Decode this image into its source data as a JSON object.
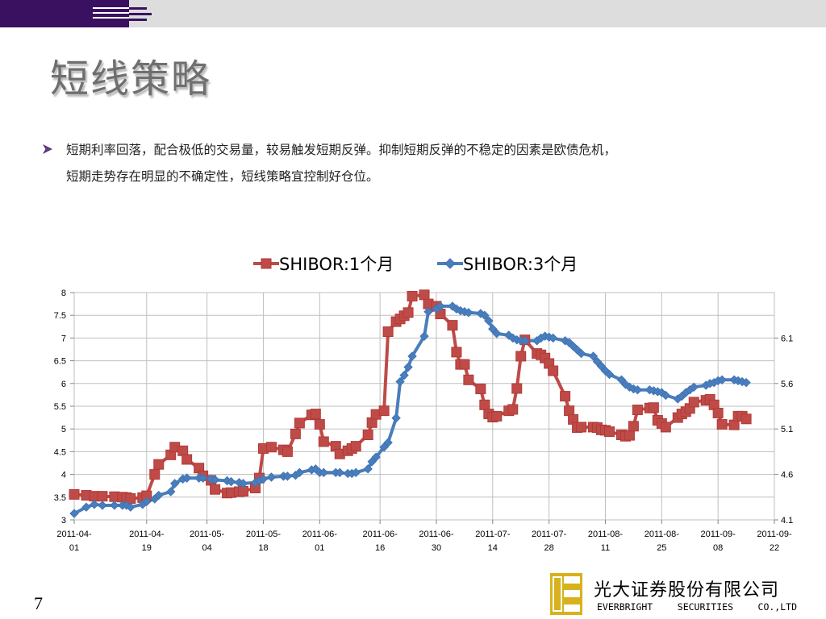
{
  "slide": {
    "title": "短线策略",
    "paragraph_lines": [
      "短期利率回落，配合极低的交易量，较易触发短期反弹。抑制短期反弹的不稳定的因素是欧债危机，",
      "短期走势存在明显的不确定性，短线策略宜控制好仓位。"
    ],
    "page_number": "7",
    "company_cn": "光大证券股份有限公司",
    "company_en_words": [
      "EVERBRIGHT",
      "SECURITIES",
      "CO.,LTD"
    ]
  },
  "colors": {
    "top_bar": "#dddddd",
    "top_bar_accent": "#3a1160",
    "title": "#6f6f6f",
    "bullet": "#6a3b8f",
    "series_1": "#be4b48",
    "series_1_marker": "#b23a37",
    "series_2": "#4a7ebb",
    "series_2_marker": "#3f74b8",
    "logo_gold": "#d7b21c"
  },
  "chart_data": {
    "type": "line",
    "legend_position": "top",
    "grid": true,
    "x_tick_labels": [
      [
        "2011-04-",
        "01"
      ],
      [
        "2011-04-",
        "19"
      ],
      [
        "2011-05-",
        "04"
      ],
      [
        "2011-05-",
        "18"
      ],
      [
        "2011-06-",
        "01"
      ],
      [
        "2011-06-",
        "16"
      ],
      [
        "2011-06-",
        "30"
      ],
      [
        "2011-07-",
        "14"
      ],
      [
        "2011-07-",
        "28"
      ],
      [
        "2011-08-",
        "11"
      ],
      [
        "2011-08-",
        "25"
      ],
      [
        "2011-09-",
        "08"
      ],
      [
        "2011-09-",
        "22"
      ]
    ],
    "x_tick_dates": [
      "2011-04-01",
      "2011-04-19",
      "2011-05-04",
      "2011-05-18",
      "2011-06-01",
      "2011-06-16",
      "2011-06-30",
      "2011-07-14",
      "2011-07-28",
      "2011-08-11",
      "2011-08-25",
      "2011-09-08",
      "2011-09-22"
    ],
    "y_left": {
      "range": [
        3,
        8
      ],
      "ticks": [
        "3",
        "3.5",
        "4",
        "4.5",
        "5",
        "5.5",
        "6",
        "6.5",
        "7",
        "7.5",
        "8"
      ]
    },
    "y_right": {
      "range": [
        4.1,
        6.6
      ],
      "ticks": [
        "4.1",
        "4.6",
        "5.1",
        "5.6",
        "6.1"
      ]
    },
    "series": [
      {
        "name": "SHIBOR:1个月",
        "axis": "left",
        "marker": "square",
        "points": [
          [
            "2011-04-01",
            3.56
          ],
          [
            "2011-04-04",
            3.54
          ],
          [
            "2011-04-06",
            3.52
          ],
          [
            "2011-04-08",
            3.52
          ],
          [
            "2011-04-11",
            3.51
          ],
          [
            "2011-04-13",
            3.5
          ],
          [
            "2011-04-14",
            3.49
          ],
          [
            "2011-04-15",
            3.47
          ],
          [
            "2011-04-18",
            3.49
          ],
          [
            "2011-04-19",
            3.53
          ],
          [
            "2011-04-21",
            4.0
          ],
          [
            "2011-04-22",
            4.22
          ],
          [
            "2011-04-25",
            4.43
          ],
          [
            "2011-04-26",
            4.6
          ],
          [
            "2011-04-28",
            4.52
          ],
          [
            "2011-04-29",
            4.33
          ],
          [
            "2011-05-02",
            4.14
          ],
          [
            "2011-05-03",
            3.97
          ],
          [
            "2011-05-05",
            3.87
          ],
          [
            "2011-05-06",
            3.67
          ],
          [
            "2011-05-09",
            3.59
          ],
          [
            "2011-05-10",
            3.6
          ],
          [
            "2011-05-12",
            3.62
          ],
          [
            "2011-05-13",
            3.63
          ],
          [
            "2011-05-16",
            3.7
          ],
          [
            "2011-05-17",
            3.92
          ],
          [
            "2011-05-18",
            4.57
          ],
          [
            "2011-05-20",
            4.6
          ],
          [
            "2011-05-23",
            4.54
          ],
          [
            "2011-05-24",
            4.5
          ],
          [
            "2011-05-26",
            4.89
          ],
          [
            "2011-05-27",
            5.13
          ],
          [
            "2011-05-30",
            5.31
          ],
          [
            "2011-05-31",
            5.33
          ],
          [
            "2011-06-01",
            5.1
          ],
          [
            "2011-06-02",
            4.72
          ],
          [
            "2011-06-05",
            4.62
          ],
          [
            "2011-06-06",
            4.45
          ],
          [
            "2011-06-08",
            4.52
          ],
          [
            "2011-06-09",
            4.57
          ],
          [
            "2011-06-10",
            4.62
          ],
          [
            "2011-06-13",
            4.87
          ],
          [
            "2011-06-14",
            5.14
          ],
          [
            "2011-06-15",
            5.32
          ],
          [
            "2011-06-17",
            5.4
          ],
          [
            "2011-06-18",
            7.14
          ],
          [
            "2011-06-20",
            7.36
          ],
          [
            "2011-06-21",
            7.42
          ],
          [
            "2011-06-22",
            7.49
          ],
          [
            "2011-06-23",
            7.56
          ],
          [
            "2011-06-24",
            7.92
          ],
          [
            "2011-06-27",
            7.95
          ],
          [
            "2011-06-28",
            7.75
          ],
          [
            "2011-06-30",
            7.7
          ],
          [
            "2011-07-01",
            7.53
          ],
          [
            "2011-07-04",
            7.28
          ],
          [
            "2011-07-05",
            6.69
          ],
          [
            "2011-07-06",
            6.42
          ],
          [
            "2011-07-07",
            6.42
          ],
          [
            "2011-07-08",
            6.08
          ],
          [
            "2011-07-11",
            5.88
          ],
          [
            "2011-07-12",
            5.53
          ],
          [
            "2011-07-13",
            5.33
          ],
          [
            "2011-07-14",
            5.26
          ],
          [
            "2011-07-15",
            5.28
          ],
          [
            "2011-07-18",
            5.4
          ],
          [
            "2011-07-19",
            5.43
          ],
          [
            "2011-07-20",
            5.89
          ],
          [
            "2011-07-21",
            6.6
          ],
          [
            "2011-07-22",
            6.96
          ],
          [
            "2011-07-25",
            6.66
          ],
          [
            "2011-07-26",
            6.63
          ],
          [
            "2011-07-27",
            6.56
          ],
          [
            "2011-07-28",
            6.44
          ],
          [
            "2011-07-29",
            6.28
          ],
          [
            "2011-08-01",
            5.72
          ],
          [
            "2011-08-02",
            5.4
          ],
          [
            "2011-08-03",
            5.21
          ],
          [
            "2011-08-04",
            5.03
          ],
          [
            "2011-08-05",
            5.04
          ],
          [
            "2011-08-08",
            5.04
          ],
          [
            "2011-08-09",
            5.03
          ],
          [
            "2011-08-10",
            4.98
          ],
          [
            "2011-08-11",
            4.97
          ],
          [
            "2011-08-12",
            4.94
          ],
          [
            "2011-08-15",
            4.87
          ],
          [
            "2011-08-16",
            4.84
          ],
          [
            "2011-08-17",
            4.86
          ],
          [
            "2011-08-18",
            5.06
          ],
          [
            "2011-08-19",
            5.42
          ],
          [
            "2011-08-22",
            5.46
          ],
          [
            "2011-08-23",
            5.47
          ],
          [
            "2011-08-24",
            5.19
          ],
          [
            "2011-08-25",
            5.12
          ],
          [
            "2011-08-26",
            5.04
          ],
          [
            "2011-08-29",
            5.25
          ],
          [
            "2011-08-30",
            5.33
          ],
          [
            "2011-08-31",
            5.38
          ],
          [
            "2011-09-01",
            5.45
          ],
          [
            "2011-09-02",
            5.59
          ],
          [
            "2011-09-05",
            5.63
          ],
          [
            "2011-09-06",
            5.65
          ],
          [
            "2011-09-07",
            5.53
          ],
          [
            "2011-09-08",
            5.35
          ],
          [
            "2011-09-09",
            5.1
          ],
          [
            "2011-09-12",
            5.09
          ],
          [
            "2011-09-13",
            5.28
          ],
          [
            "2011-09-14",
            5.28
          ],
          [
            "2011-09-15",
            5.22
          ]
        ]
      },
      {
        "name": "SHIBOR:3个月",
        "axis": "right",
        "marker": "diamond",
        "points": [
          [
            "2011-04-01",
            4.17
          ],
          [
            "2011-04-04",
            4.24
          ],
          [
            "2011-04-06",
            4.27
          ],
          [
            "2011-04-08",
            4.26
          ],
          [
            "2011-04-11",
            4.26
          ],
          [
            "2011-04-13",
            4.26
          ],
          [
            "2011-04-14",
            4.26
          ],
          [
            "2011-04-15",
            4.24
          ],
          [
            "2011-04-18",
            4.27
          ],
          [
            "2011-04-19",
            4.3
          ],
          [
            "2011-04-21",
            4.33
          ],
          [
            "2011-04-22",
            4.37
          ],
          [
            "2011-04-25",
            4.41
          ],
          [
            "2011-04-26",
            4.5
          ],
          [
            "2011-04-28",
            4.55
          ],
          [
            "2011-04-29",
            4.56
          ],
          [
            "2011-05-02",
            4.56
          ],
          [
            "2011-05-03",
            4.56
          ],
          [
            "2011-05-05",
            4.55
          ],
          [
            "2011-05-06",
            4.54
          ],
          [
            "2011-05-09",
            4.53
          ],
          [
            "2011-05-10",
            4.52
          ],
          [
            "2011-05-12",
            4.51
          ],
          [
            "2011-05-13",
            4.5
          ],
          [
            "2011-05-16",
            4.51
          ],
          [
            "2011-05-17",
            4.53
          ],
          [
            "2011-05-18",
            4.55
          ],
          [
            "2011-05-20",
            4.57
          ],
          [
            "2011-05-23",
            4.58
          ],
          [
            "2011-05-24",
            4.58
          ],
          [
            "2011-05-26",
            4.59
          ],
          [
            "2011-05-27",
            4.62
          ],
          [
            "2011-05-30",
            4.65
          ],
          [
            "2011-05-31",
            4.66
          ],
          [
            "2011-06-01",
            4.62
          ],
          [
            "2011-06-02",
            4.62
          ],
          [
            "2011-06-05",
            4.62
          ],
          [
            "2011-06-06",
            4.62
          ],
          [
            "2011-06-08",
            4.61
          ],
          [
            "2011-06-09",
            4.61
          ],
          [
            "2011-06-10",
            4.62
          ],
          [
            "2011-06-13",
            4.66
          ],
          [
            "2011-06-14",
            4.74
          ],
          [
            "2011-06-15",
            4.79
          ],
          [
            "2011-06-17",
            4.9
          ],
          [
            "2011-06-18",
            4.95
          ],
          [
            "2011-06-20",
            5.22
          ],
          [
            "2011-06-21",
            5.62
          ],
          [
            "2011-06-22",
            5.69
          ],
          [
            "2011-06-23",
            5.78
          ],
          [
            "2011-06-24",
            5.9
          ],
          [
            "2011-06-27",
            6.12
          ],
          [
            "2011-06-28",
            6.39
          ],
          [
            "2011-06-30",
            6.42
          ],
          [
            "2011-07-01",
            6.45
          ],
          [
            "2011-07-04",
            6.45
          ],
          [
            "2011-07-05",
            6.42
          ],
          [
            "2011-07-06",
            6.4
          ],
          [
            "2011-07-07",
            6.39
          ],
          [
            "2011-07-08",
            6.38
          ],
          [
            "2011-07-11",
            6.37
          ],
          [
            "2011-07-12",
            6.35
          ],
          [
            "2011-07-13",
            6.29
          ],
          [
            "2011-07-14",
            6.2
          ],
          [
            "2011-07-15",
            6.15
          ],
          [
            "2011-07-18",
            6.13
          ],
          [
            "2011-07-19",
            6.1
          ],
          [
            "2011-07-20",
            6.08
          ],
          [
            "2011-07-21",
            6.07
          ],
          [
            "2011-07-22",
            6.07
          ],
          [
            "2011-07-25",
            6.07
          ],
          [
            "2011-07-26",
            6.1
          ],
          [
            "2011-07-27",
            6.12
          ],
          [
            "2011-07-28",
            6.11
          ],
          [
            "2011-07-29",
            6.1
          ],
          [
            "2011-08-01",
            6.07
          ],
          [
            "2011-08-02",
            6.05
          ],
          [
            "2011-08-03",
            6.01
          ],
          [
            "2011-08-04",
            5.97
          ],
          [
            "2011-08-05",
            5.93
          ],
          [
            "2011-08-08",
            5.9
          ],
          [
            "2011-08-09",
            5.84
          ],
          [
            "2011-08-10",
            5.79
          ],
          [
            "2011-08-11",
            5.74
          ],
          [
            "2011-08-12",
            5.7
          ],
          [
            "2011-08-15",
            5.64
          ],
          [
            "2011-08-16",
            5.59
          ],
          [
            "2011-08-17",
            5.56
          ],
          [
            "2011-08-18",
            5.54
          ],
          [
            "2011-08-19",
            5.53
          ],
          [
            "2011-08-22",
            5.53
          ],
          [
            "2011-08-23",
            5.52
          ],
          [
            "2011-08-24",
            5.51
          ],
          [
            "2011-08-25",
            5.5
          ],
          [
            "2011-08-26",
            5.47
          ],
          [
            "2011-08-29",
            5.43
          ],
          [
            "2011-08-30",
            5.46
          ],
          [
            "2011-08-31",
            5.5
          ],
          [
            "2011-09-01",
            5.53
          ],
          [
            "2011-09-02",
            5.56
          ],
          [
            "2011-09-05",
            5.58
          ],
          [
            "2011-09-06",
            5.6
          ],
          [
            "2011-09-07",
            5.61
          ],
          [
            "2011-09-08",
            5.63
          ],
          [
            "2011-09-09",
            5.64
          ],
          [
            "2011-09-12",
            5.64
          ],
          [
            "2011-09-13",
            5.63
          ],
          [
            "2011-09-14",
            5.62
          ],
          [
            "2011-09-15",
            5.61
          ]
        ]
      }
    ]
  }
}
